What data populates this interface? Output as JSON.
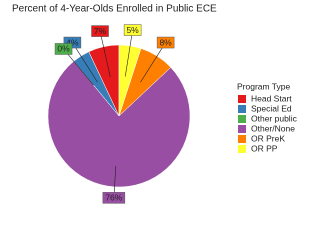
{
  "chart_data": {
    "type": "pie",
    "title": "Percent of 4-Year-Olds Enrolled in Public ECE",
    "legend_title": "Program Type",
    "categories": [
      "Head Start",
      "Special Ed",
      "Other public",
      "Other/None",
      "OR PreK",
      "OR PP"
    ],
    "values": [
      7,
      4,
      0,
      76,
      8,
      5
    ],
    "value_labels": [
      "7%",
      "4%",
      "0%",
      "76%",
      "8%",
      "5%"
    ],
    "colors": [
      "#e41a1c",
      "#377eb8",
      "#4daf4a",
      "#984ea3",
      "#ff7f00",
      "#ffff33"
    ],
    "legend": "right"
  }
}
